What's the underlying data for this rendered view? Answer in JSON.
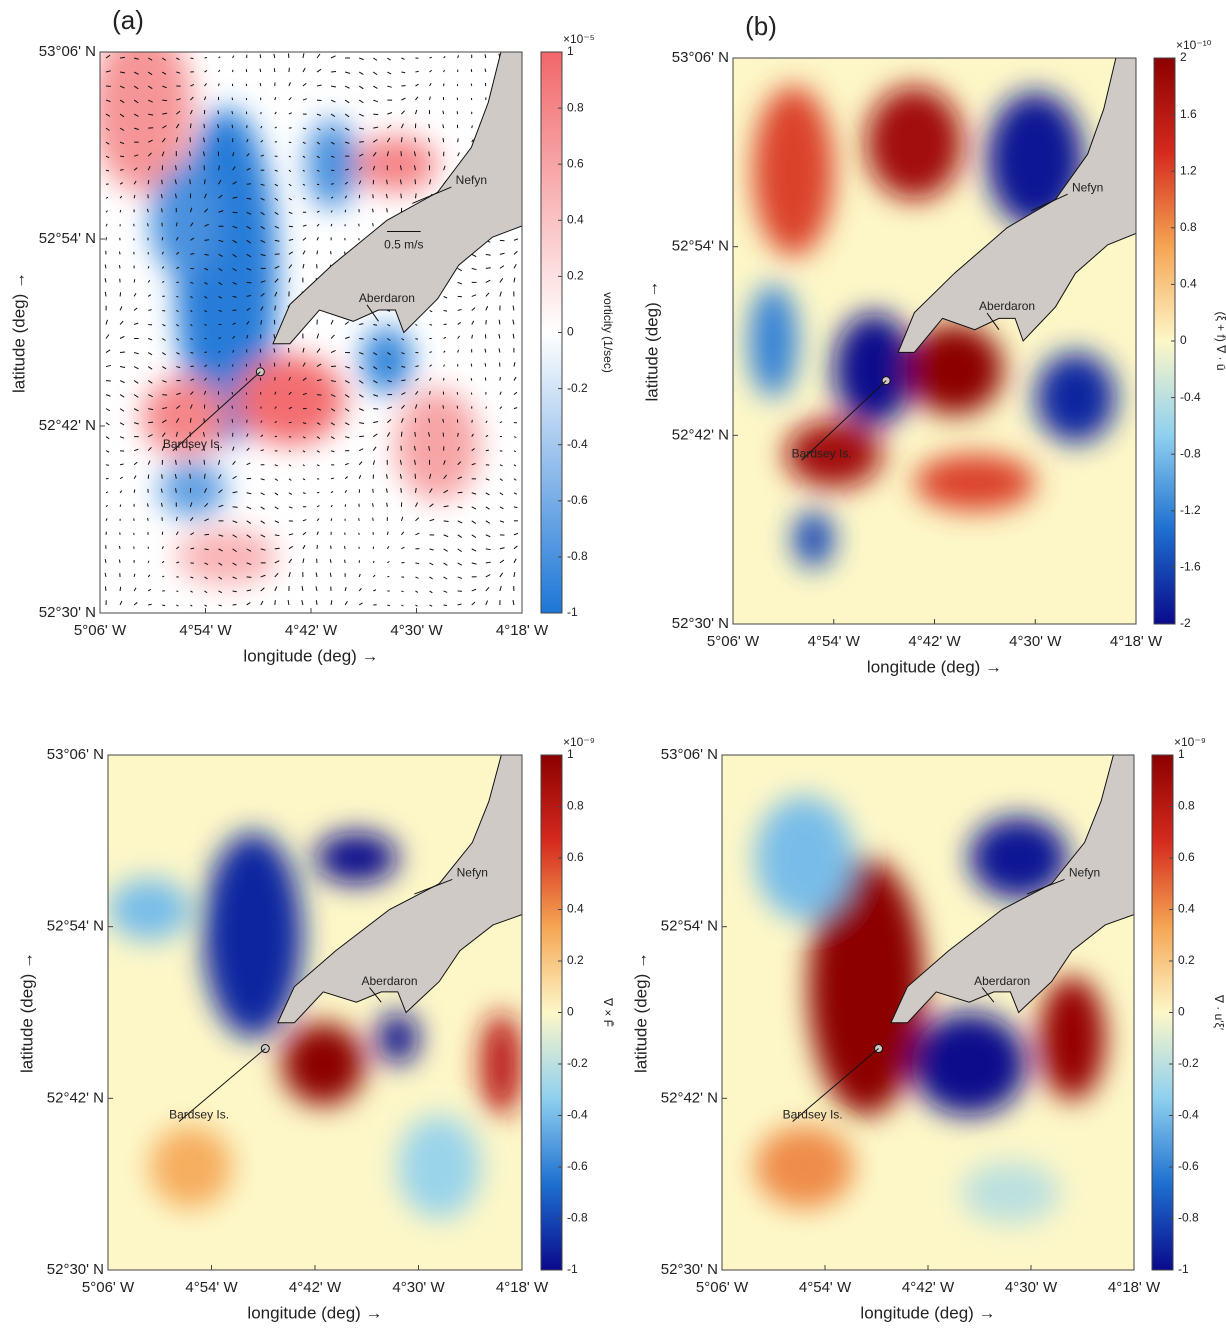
{
  "chart_data": [
    {
      "type": "heatmap",
      "panel_label": "(a)",
      "xlabel": "longitude (deg) →",
      "ylabel": "latitude (deg) →",
      "xlim": [
        -5.1,
        -4.3
      ],
      "xticks": [
        {
          "value": -5.1,
          "label": "5°06' W"
        },
        {
          "value": -4.9,
          "label": "4°54' W"
        },
        {
          "value": -4.7,
          "label": "4°42' W"
        },
        {
          "value": -4.5,
          "label": "4°30' W"
        },
        {
          "value": -4.3,
          "label": "4°18' W"
        }
      ],
      "ylim": [
        52.5,
        53.1
      ],
      "yticks": [
        {
          "value": 52.5,
          "label": "52°30' N"
        },
        {
          "value": 52.7,
          "label": "52°42' N"
        },
        {
          "value": 52.9,
          "label": "52°54' N"
        },
        {
          "value": 53.1,
          "label": "53°06' N"
        }
      ],
      "colorbar": {
        "label": "vorticity (1/sec)",
        "exponent": "×10⁻⁵",
        "clim": [
          -1,
          1
        ],
        "cticks": [
          -1,
          -0.8,
          -0.6,
          -0.4,
          -0.2,
          0,
          0.2,
          0.4,
          0.6,
          0.8,
          1
        ],
        "colors": [
          "#1c76d6",
          "#ffffff",
          "#f2676a"
        ]
      },
      "annotations": [
        "Nefyn",
        "Aberdaron",
        "Bardsey Is."
      ],
      "arrow_scale_label": "0.5 m/s",
      "quiver": true
    },
    {
      "type": "heatmap",
      "panel_label": "(b)",
      "xlabel": "longitude (deg) →",
      "ylabel": "latitude (deg) →",
      "xlim": [
        -5.1,
        -4.3
      ],
      "xticks": [
        {
          "value": -5.1,
          "label": "5°06' W"
        },
        {
          "value": -4.9,
          "label": "4°54' W"
        },
        {
          "value": -4.7,
          "label": "4°42' W"
        },
        {
          "value": -4.5,
          "label": "4°30' W"
        },
        {
          "value": -4.3,
          "label": "4°18' W"
        }
      ],
      "ylim": [
        52.5,
        53.1
      ],
      "yticks": [
        {
          "value": 52.5,
          "label": "52°30' N"
        },
        {
          "value": 52.7,
          "label": "52°42' N"
        },
        {
          "value": 52.9,
          "label": "52°54' N"
        },
        {
          "value": 53.1,
          "label": "53°06' N"
        }
      ],
      "colorbar": {
        "label": "(ξ + f) ∇ · ū",
        "exponent": "×10⁻¹⁰",
        "clim": [
          -2,
          2
        ],
        "cticks": [
          -2,
          -1.6,
          -1.2,
          -0.8,
          -0.4,
          0,
          0.4,
          0.8,
          1.2,
          1.6,
          2
        ],
        "colors": [
          "#0a0a8c",
          "#1e6fd0",
          "#8fd0ef",
          "#fdf7c8",
          "#f5a553",
          "#d52a1e",
          "#8c0000"
        ]
      },
      "annotations": [
        "Nefyn",
        "Aberdaron",
        "Bardsey Is."
      ],
      "quiver": false
    },
    {
      "type": "heatmap",
      "xlabel": "longitude (deg) →",
      "ylabel": "latitude (deg) →",
      "xlim": [
        -5.1,
        -4.3
      ],
      "xticks": [
        {
          "value": -5.1,
          "label": "5°06' W"
        },
        {
          "value": -4.9,
          "label": "4°54' W"
        },
        {
          "value": -4.7,
          "label": "4°42' W"
        },
        {
          "value": -4.5,
          "label": "4°30' W"
        },
        {
          "value": -4.3,
          "label": "4°18' W"
        }
      ],
      "ylim": [
        52.5,
        53.1
      ],
      "yticks": [
        {
          "value": 52.5,
          "label": "52°30' N"
        },
        {
          "value": 52.7,
          "label": "52°42' N"
        },
        {
          "value": 52.9,
          "label": "52°54' N"
        },
        {
          "value": 53.1,
          "label": "53°06' N"
        }
      ],
      "colorbar": {
        "label": "∇ × F̄",
        "exponent": "×10⁻⁹",
        "clim": [
          -1,
          1
        ],
        "cticks": [
          -1,
          -0.8,
          -0.6,
          -0.4,
          -0.2,
          0,
          0.2,
          0.4,
          0.6,
          0.8,
          1
        ],
        "colors": [
          "#0a0a8c",
          "#1e6fd0",
          "#8fd0ef",
          "#fdf7c8",
          "#f5a553",
          "#d52a1e",
          "#8c0000"
        ]
      },
      "annotations": [
        "Nefyn",
        "Aberdaron",
        "Bardsey Is."
      ],
      "quiver": false
    },
    {
      "type": "heatmap",
      "xlabel": "longitude (deg) →",
      "ylabel": "latitude (deg) →",
      "xlim": [
        -5.1,
        -4.3
      ],
      "xticks": [
        {
          "value": -5.1,
          "label": "5°06' W"
        },
        {
          "value": -4.9,
          "label": "4°54' W"
        },
        {
          "value": -4.7,
          "label": "4°42' W"
        },
        {
          "value": -4.5,
          "label": "4°30' W"
        },
        {
          "value": -4.3,
          "label": "4°18' W"
        }
      ],
      "ylim": [
        52.5,
        53.1
      ],
      "yticks": [
        {
          "value": 52.5,
          "label": "52°30' N"
        },
        {
          "value": 52.7,
          "label": "52°42' N"
        },
        {
          "value": 52.9,
          "label": "52°54' N"
        },
        {
          "value": 53.1,
          "label": "53°06' N"
        }
      ],
      "colorbar": {
        "label": "∇ · u′ξ′",
        "exponent": "×10⁻⁹",
        "clim": [
          -1,
          1
        ],
        "cticks": [
          -1,
          -0.8,
          -0.6,
          -0.4,
          -0.2,
          0,
          0.2,
          0.4,
          0.6,
          0.8,
          1
        ],
        "colors": [
          "#0a0a8c",
          "#1e6fd0",
          "#8fd0ef",
          "#fdf7c8",
          "#f5a553",
          "#d52a1e",
          "#8c0000"
        ]
      },
      "annotations": [
        "Nefyn",
        "Aberdaron",
        "Bardsey Is."
      ],
      "quiver": false
    }
  ]
}
